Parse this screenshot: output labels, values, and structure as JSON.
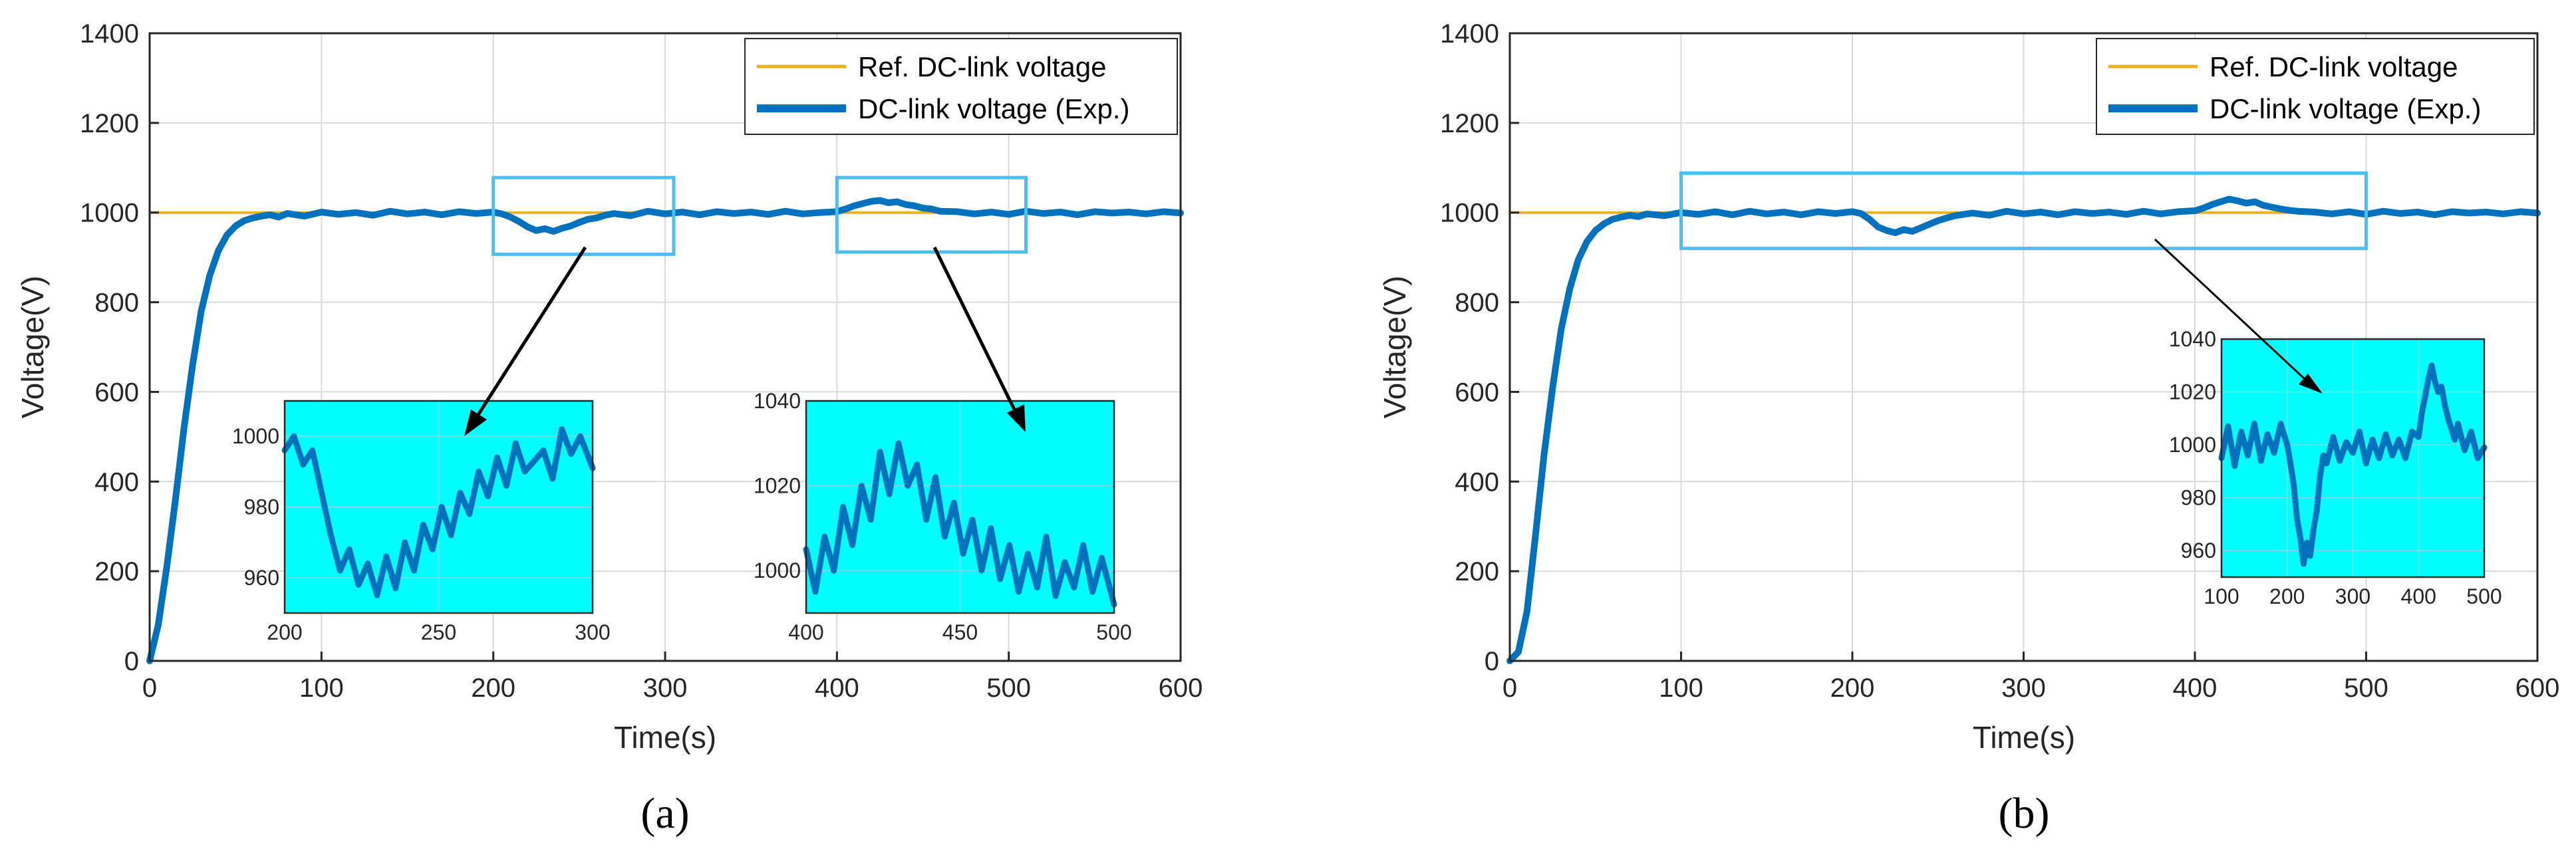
{
  "colors": {
    "reference": "#EDB120",
    "measured": "#0072BD",
    "zoom_box": "#4DBEEE",
    "inset_bg": "#00FFFF",
    "grid": "#D9D9D9",
    "axis": "#262626"
  },
  "chart_data": [
    {
      "type": "line",
      "panel_label": "(a)",
      "xlabel": "Time(s)",
      "ylabel": "Voltage(V)",
      "xlim": [
        0,
        600
      ],
      "ylim": [
        0,
        1400
      ],
      "xticks": [
        0,
        100,
        200,
        300,
        400,
        500,
        600
      ],
      "yticks": [
        0,
        200,
        400,
        600,
        800,
        1000,
        1200,
        1400
      ],
      "grid": true,
      "legend": {
        "location": "top-right",
        "entries": [
          "Ref. DC-link voltage",
          "DC-link voltage (Exp.)"
        ]
      },
      "series": [
        {
          "name": "Ref. DC-link voltage",
          "color": "#EDB120",
          "x": [
            0,
            600
          ],
          "values": [
            1000,
            1000
          ]
        },
        {
          "name": "DC-link voltage (Exp.)",
          "color": "#0072BD",
          "x": [
            0,
            5,
            10,
            15,
            20,
            25,
            30,
            35,
            40,
            45,
            50,
            55,
            60,
            65,
            70,
            75,
            80,
            90,
            100,
            110,
            120,
            130,
            140,
            150,
            160,
            170,
            180,
            190,
            200,
            205,
            210,
            215,
            220,
            225,
            230,
            235,
            240,
            245,
            250,
            255,
            260,
            265,
            270,
            280,
            290,
            300,
            310,
            320,
            330,
            340,
            350,
            360,
            370,
            380,
            390,
            400,
            405,
            410,
            415,
            420,
            425,
            430,
            435,
            440,
            445,
            450,
            455,
            460,
            470,
            480,
            490,
            500,
            510,
            520,
            530,
            540,
            550,
            560,
            570,
            580,
            590,
            600
          ],
          "values": [
            0,
            80,
            210,
            360,
            520,
            660,
            780,
            860,
            915,
            950,
            970,
            982,
            988,
            992,
            995,
            990,
            998,
            992,
            1001,
            996,
            1000,
            994,
            1003,
            997,
            1001,
            995,
            1002,
            998,
            1001,
            997,
            990,
            980,
            968,
            960,
            964,
            958,
            965,
            970,
            978,
            985,
            988,
            994,
            998,
            993,
            1003,
            997,
            1001,
            995,
            1002,
            998,
            1001,
            996,
            1003,
            997,
            1000,
            1002,
            1008,
            1015,
            1020,
            1025,
            1027,
            1022,
            1024,
            1018,
            1015,
            1010,
            1008,
            1003,
            1002,
            997,
            1001,
            996,
            1003,
            998,
            1001,
            995,
            1002,
            999,
            1001,
            997,
            1002,
            999
          ]
        }
      ],
      "zoom_boxes": [
        {
          "x": [
            200,
            305
          ],
          "y": [
            907,
            1078
          ]
        },
        {
          "x": [
            400,
            510
          ],
          "y": [
            912,
            1078
          ]
        }
      ],
      "insets": [
        {
          "xlim": [
            200,
            300
          ],
          "ylim": [
            950,
            1010
          ],
          "xticks": [
            200,
            250,
            300
          ],
          "yticks": [
            960,
            980,
            1000
          ],
          "x": [
            200,
            203,
            206,
            209,
            212,
            215,
            218,
            221,
            224,
            227,
            230,
            233,
            236,
            239,
            242,
            245,
            248,
            251,
            254,
            257,
            260,
            263,
            266,
            269,
            272,
            275,
            278,
            281,
            284,
            287,
            290,
            293,
            296,
            300
          ],
          "values": [
            996,
            1000,
            992,
            996,
            984,
            972,
            962,
            968,
            958,
            964,
            955,
            966,
            957,
            970,
            962,
            975,
            968,
            980,
            972,
            984,
            978,
            990,
            983,
            994,
            986,
            998,
            990,
            993,
            996,
            988,
            1002,
            995,
            1000,
            991
          ]
        },
        {
          "xlim": [
            400,
            500
          ],
          "ylim": [
            990,
            1040
          ],
          "xticks": [
            400,
            450,
            500
          ],
          "yticks": [
            1000,
            1020,
            1040
          ],
          "x": [
            400,
            403,
            406,
            409,
            412,
            415,
            418,
            421,
            424,
            427,
            430,
            433,
            436,
            439,
            442,
            445,
            448,
            451,
            454,
            457,
            460,
            463,
            466,
            469,
            472,
            475,
            478,
            481,
            484,
            487,
            490,
            493,
            496,
            500
          ],
          "values": [
            1005,
            995,
            1008,
            1000,
            1015,
            1006,
            1020,
            1012,
            1028,
            1018,
            1030,
            1020,
            1025,
            1012,
            1022,
            1008,
            1016,
            1004,
            1012,
            1000,
            1010,
            998,
            1006,
            995,
            1004,
            996,
            1008,
            994,
            1002,
            996,
            1006,
            995,
            1003,
            992
          ]
        }
      ]
    },
    {
      "type": "line",
      "panel_label": "(b)",
      "xlabel": "Time(s)",
      "ylabel": "Voltage(V)",
      "xlim": [
        0,
        600
      ],
      "ylim": [
        0,
        1400
      ],
      "xticks": [
        0,
        100,
        200,
        300,
        400,
        500,
        600
      ],
      "yticks": [
        0,
        200,
        400,
        600,
        800,
        1000,
        1200,
        1400
      ],
      "grid": true,
      "legend": {
        "location": "top-right",
        "entries": [
          "Ref. DC-link voltage",
          "DC-link voltage (Exp.)"
        ]
      },
      "series": [
        {
          "name": "Ref. DC-link voltage",
          "color": "#EDB120",
          "x": [
            0,
            600
          ],
          "values": [
            1000,
            1000
          ]
        },
        {
          "name": "DC-link voltage (Exp.)",
          "color": "#0072BD",
          "x": [
            0,
            5,
            10,
            15,
            20,
            25,
            30,
            35,
            40,
            45,
            50,
            55,
            60,
            65,
            70,
            75,
            80,
            90,
            100,
            110,
            120,
            130,
            140,
            150,
            160,
            170,
            180,
            190,
            200,
            205,
            210,
            215,
            220,
            225,
            230,
            235,
            240,
            245,
            250,
            255,
            260,
            265,
            270,
            280,
            290,
            300,
            310,
            320,
            330,
            340,
            350,
            360,
            370,
            380,
            390,
            400,
            405,
            410,
            415,
            420,
            425,
            430,
            435,
            440,
            445,
            450,
            455,
            460,
            470,
            480,
            490,
            500,
            510,
            520,
            530,
            540,
            550,
            560,
            570,
            580,
            590,
            600
          ],
          "values": [
            0,
            20,
            110,
            280,
            460,
            610,
            740,
            830,
            895,
            935,
            960,
            975,
            985,
            990,
            994,
            991,
            997,
            993,
            1000,
            996,
            1002,
            995,
            1003,
            997,
            1001,
            995,
            1002,
            998,
            1002,
            998,
            985,
            968,
            960,
            955,
            962,
            958,
            966,
            974,
            982,
            988,
            993,
            996,
            999,
            994,
            1003,
            997,
            1001,
            995,
            1002,
            998,
            1001,
            996,
            1003,
            997,
            1002,
            1004,
            1010,
            1018,
            1024,
            1030,
            1026,
            1021,
            1024,
            1016,
            1012,
            1008,
            1005,
            1003,
            1001,
            997,
            1002,
            996,
            1003,
            998,
            1001,
            995,
            1002,
            999,
            1001,
            997,
            1002,
            999
          ]
        }
      ],
      "zoom_boxes": [
        {
          "x": [
            100,
            500
          ],
          "y": [
            920,
            1088
          ]
        }
      ],
      "insets": [
        {
          "xlim": [
            100,
            500
          ],
          "ylim": [
            950,
            1040
          ],
          "xticks": [
            100,
            200,
            300,
            400,
            500
          ],
          "yticks": [
            960,
            980,
            1000,
            1020,
            1040
          ],
          "x": [
            100,
            110,
            120,
            130,
            140,
            150,
            160,
            170,
            180,
            190,
            200,
            205,
            210,
            215,
            220,
            225,
            230,
            235,
            240,
            245,
            250,
            255,
            260,
            270,
            280,
            290,
            300,
            310,
            320,
            330,
            340,
            350,
            360,
            370,
            380,
            390,
            400,
            405,
            410,
            415,
            420,
            425,
            430,
            435,
            440,
            445,
            450,
            455,
            460,
            470,
            480,
            490,
            500
          ],
          "values": [
            995,
            1007,
            992,
            1005,
            996,
            1008,
            994,
            1004,
            997,
            1008,
            1000,
            993,
            985,
            972,
            965,
            955,
            963,
            958,
            968,
            975,
            988,
            996,
            993,
            1003,
            994,
            1001,
            997,
            1005,
            993,
            1002,
            995,
            1004,
            996,
            1002,
            995,
            1005,
            1003,
            1012,
            1018,
            1025,
            1030,
            1024,
            1020,
            1022,
            1015,
            1010,
            1006,
            1002,
            1008,
            998,
            1005,
            995,
            999
          ]
        }
      ]
    }
  ]
}
